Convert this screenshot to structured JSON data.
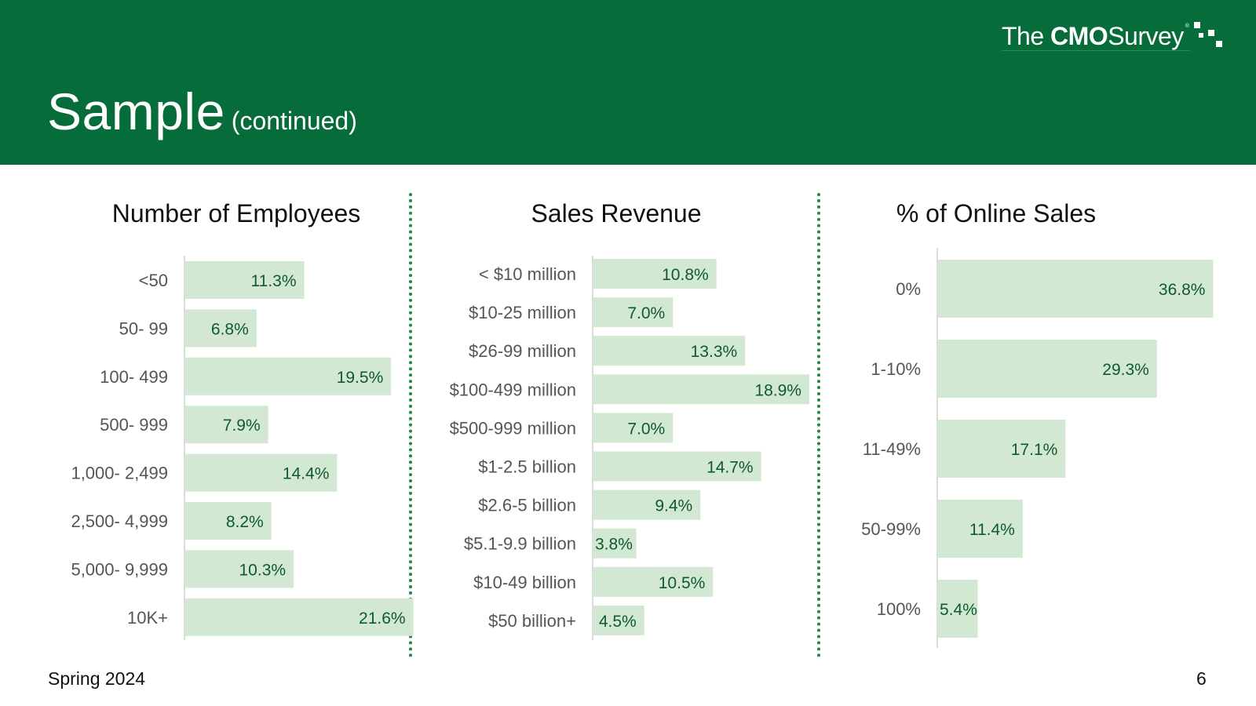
{
  "slide": {
    "title": "Sample",
    "subtitle": "(continued)",
    "footer_left": "Spring 2024",
    "page_number": "6"
  },
  "logo": {
    "word1": "The",
    "word2": "CMO",
    "word3": "Survey",
    "reg": "®"
  },
  "colors": {
    "header_bg": "#066c3a",
    "bar_fill": "#d3e8d3",
    "bar_label": "#0f5a2c",
    "divider": "#1e8a3e"
  },
  "chart_data": [
    {
      "type": "bar",
      "orientation": "horizontal",
      "title": "Number of Employees",
      "categories": [
        "<50",
        "50- 99",
        "100- 499",
        "500- 999",
        "1,000- 2,499",
        "2,500- 4,999",
        "5,000- 9,999",
        "10K+"
      ],
      "values": [
        11.3,
        6.8,
        19.5,
        7.9,
        14.4,
        8.2,
        10.3,
        21.6
      ],
      "labels": [
        "11.3%",
        "6.8%",
        "19.5%",
        "7.9%",
        "14.4%",
        "8.2%",
        "10.3%",
        "21.6%"
      ],
      "unit": "%"
    },
    {
      "type": "bar",
      "orientation": "horizontal",
      "title": "Sales Revenue",
      "categories": [
        "< $10 million",
        "$10-25 million",
        "$26-99 million",
        "$100-499 million",
        "$500-999 million",
        "$1-2.5 billion",
        "$2.6-5 billion",
        "$5.1-9.9 billion",
        "$10-49 billion",
        "$50 billion+"
      ],
      "values": [
        10.8,
        7.0,
        13.3,
        18.9,
        7.0,
        14.7,
        9.4,
        3.8,
        10.5,
        4.5
      ],
      "labels": [
        "10.8%",
        "7.0%",
        "13.3%",
        "18.9%",
        "7.0%",
        "14.7%",
        "9.4%",
        "3.8%",
        "10.5%",
        "4.5%"
      ],
      "unit": "%"
    },
    {
      "type": "bar",
      "orientation": "horizontal",
      "title": "% of Online Sales",
      "categories": [
        "0%",
        "1-10%",
        "11-49%",
        "50-99%",
        "100%"
      ],
      "values": [
        36.8,
        29.3,
        17.1,
        11.4,
        5.4
      ],
      "labels": [
        "36.8%",
        "29.3%",
        "17.1%",
        "11.4%",
        "5.4%"
      ],
      "unit": "%"
    }
  ]
}
